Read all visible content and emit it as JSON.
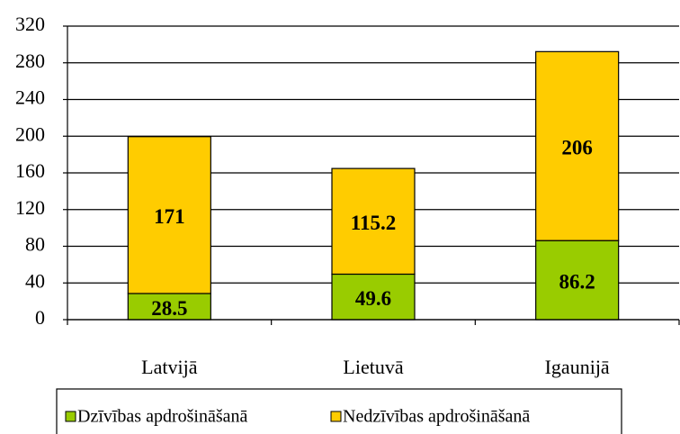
{
  "chart_data": {
    "type": "stacked_bar",
    "categories": [
      "Latvijā",
      "Lietuvā",
      "Igaunijā"
    ],
    "series": [
      {
        "name": "Dzīvības apdrošināšanā",
        "color": "#99cc00",
        "values": [
          28.5,
          49.6,
          86.2
        ]
      },
      {
        "name": "Nedzīvības apdrošināšanā",
        "color": "#ffcc00",
        "values": [
          171,
          115.2,
          206
        ]
      }
    ],
    "ylim": [
      0,
      320
    ],
    "yticks": [
      0,
      40,
      80,
      120,
      160,
      200,
      240,
      280,
      320
    ],
    "grid": true,
    "legend": "bottom"
  }
}
